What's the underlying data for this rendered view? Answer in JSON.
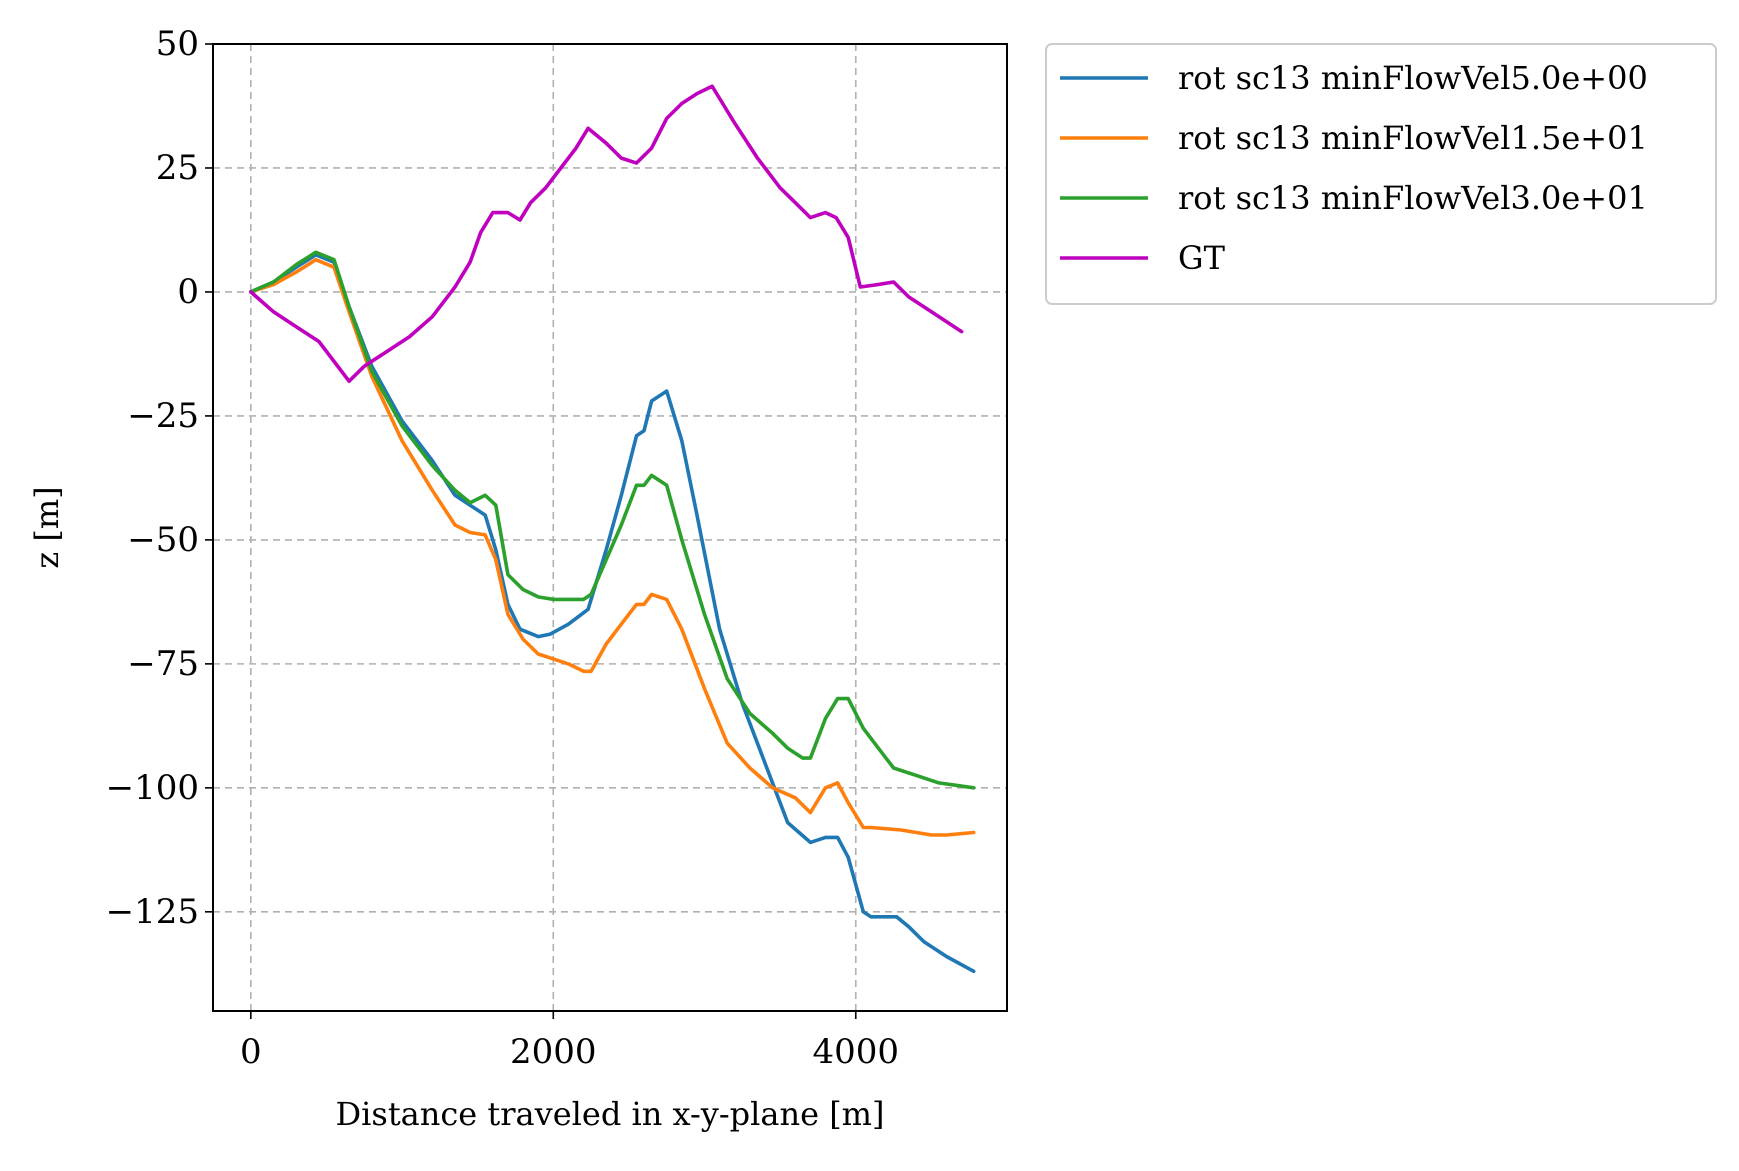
{
  "chart_data": {
    "type": "line",
    "xlabel": "Distance traveled in x-y-plane [m]",
    "ylabel": "z [m]",
    "xlim": [
      -250,
      5000
    ],
    "ylim": [
      -145,
      50
    ],
    "xticks": [
      0,
      2000,
      4000
    ],
    "xtick_labels": [
      "0",
      "2000",
      "4000"
    ],
    "yticks": [
      50,
      25,
      0,
      -25,
      -50,
      -75,
      -100,
      -125
    ],
    "ytick_labels": [
      "50",
      "25",
      "0",
      "−25",
      "−50",
      "−75",
      "−100",
      "−125"
    ],
    "grid": true,
    "legend_position": "outside-upper-right",
    "series": [
      {
        "name": "rot sc13 minFlowVel5.0e+00",
        "color": "#1f77b4",
        "x": [
          0,
          150,
          300,
          430,
          550,
          650,
          800,
          1000,
          1200,
          1350,
          1450,
          1550,
          1620,
          1700,
          1780,
          1900,
          1980,
          2100,
          2230,
          2350,
          2450,
          2550,
          2600,
          2650,
          2750,
          2850,
          2950,
          3100,
          3250,
          3400,
          3550,
          3700,
          3800,
          3880,
          3950,
          4050,
          4100,
          4150,
          4270,
          4350,
          4450,
          4600,
          4780
        ],
        "y": [
          0,
          2,
          5,
          7.5,
          6,
          -3,
          -15,
          -26,
          -34,
          -41,
          -43,
          -45,
          -52,
          -63,
          -68,
          -69.5,
          -69,
          -67,
          -64,
          -52,
          -41,
          -29,
          -28,
          -22,
          -20,
          -30,
          -45,
          -68,
          -83,
          -95,
          -107,
          -111,
          -110,
          -110,
          -114,
          -125,
          -126,
          -126,
          -126,
          -128,
          -131,
          -134,
          -137
        ]
      },
      {
        "name": "rot sc13 minFlowVel1.5e+01",
        "color": "#ff7f0e",
        "x": [
          0,
          150,
          300,
          430,
          550,
          650,
          800,
          1000,
          1200,
          1350,
          1450,
          1550,
          1620,
          1700,
          1800,
          1900,
          2000,
          2100,
          2200,
          2250,
          2350,
          2450,
          2550,
          2600,
          2650,
          2750,
          2850,
          3000,
          3150,
          3300,
          3450,
          3600,
          3700,
          3800,
          3880,
          3950,
          4050,
          4100,
          4300,
          4400,
          4500,
          4600,
          4780
        ],
        "y": [
          0,
          1.5,
          4,
          6.5,
          5,
          -4,
          -17,
          -30,
          -40,
          -47,
          -48.5,
          -49,
          -54,
          -65,
          -70,
          -73,
          -74,
          -75,
          -76.5,
          -76.5,
          -71,
          -67,
          -63,
          -63,
          -61,
          -62,
          -68,
          -80,
          -91,
          -96,
          -100,
          -102,
          -105,
          -100,
          -99,
          -103,
          -108,
          -108,
          -108.5,
          -109,
          -109.5,
          -109.5,
          -109
        ]
      },
      {
        "name": "rot sc13 minFlowVel3.0e+01",
        "color": "#2ca02c",
        "x": [
          0,
          150,
          300,
          430,
          550,
          650,
          800,
          1000,
          1200,
          1350,
          1450,
          1550,
          1620,
          1700,
          1800,
          1900,
          2000,
          2100,
          2200,
          2250,
          2350,
          2450,
          2550,
          2600,
          2650,
          2750,
          2850,
          3000,
          3150,
          3300,
          3450,
          3550,
          3650,
          3700,
          3800,
          3880,
          3950,
          4050,
          4150,
          4250,
          4400,
          4550,
          4780
        ],
        "y": [
          0,
          2,
          5.5,
          8,
          6.5,
          -3,
          -16,
          -27,
          -35,
          -40,
          -42.5,
          -41,
          -43,
          -57,
          -60,
          -61.5,
          -62,
          -62,
          -62,
          -61,
          -54,
          -47,
          -39,
          -39,
          -37,
          -39,
          -50,
          -65,
          -78,
          -85,
          -89,
          -92,
          -94,
          -94,
          -86,
          -82,
          -82,
          -88,
          -92,
          -96,
          -97.5,
          -99,
          -100
        ]
      },
      {
        "name": "GT",
        "color": "#bf00bf",
        "x": [
          0,
          150,
          300,
          450,
          550,
          650,
          750,
          900,
          1050,
          1200,
          1350,
          1450,
          1520,
          1600,
          1700,
          1780,
          1850,
          1950,
          2050,
          2150,
          2230,
          2350,
          2450,
          2550,
          2650,
          2750,
          2850,
          2950,
          3050,
          3100,
          3200,
          3350,
          3500,
          3600,
          3700,
          3800,
          3870,
          3950,
          4030,
          4150,
          4250,
          4350,
          4500,
          4700
        ],
        "y": [
          0,
          -4,
          -7,
          -10,
          -14,
          -18,
          -15,
          -12,
          -9,
          -5,
          1,
          6,
          12,
          16,
          16,
          14.5,
          18,
          21,
          25,
          29,
          33,
          30,
          27,
          26,
          29,
          35,
          38,
          40,
          41.5,
          39,
          34,
          27,
          21,
          18,
          15,
          16,
          15,
          11,
          1,
          1.5,
          2,
          -1,
          -4,
          -8
        ]
      }
    ]
  }
}
